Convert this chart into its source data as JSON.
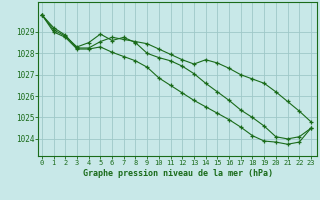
{
  "title": "Graphe pression niveau de la mer (hPa)",
  "bg_color": "#c8e8e8",
  "grid_color": "#9fc8c8",
  "line_color": "#1a6b1a",
  "marker_color": "#1a6b1a",
  "x_ticks": [
    0,
    1,
    2,
    3,
    4,
    5,
    6,
    7,
    8,
    9,
    10,
    11,
    12,
    13,
    14,
    15,
    16,
    17,
    18,
    19,
    20,
    21,
    22,
    23
  ],
  "y_ticks": [
    1024,
    1025,
    1026,
    1027,
    1028,
    1029
  ],
  "ylim": [
    1023.2,
    1030.4
  ],
  "xlim": [
    -0.3,
    23.5
  ],
  "series": [
    [
      1029.8,
      1029.2,
      1028.85,
      1028.25,
      1028.25,
      1028.55,
      1028.75,
      1028.65,
      1028.55,
      1028.45,
      1028.2,
      1027.95,
      1027.7,
      1027.5,
      1027.7,
      1027.55,
      1027.3,
      1027.0,
      1026.8,
      1026.6,
      1026.2,
      1025.75,
      1025.3,
      1024.8
    ],
    [
      1029.8,
      1029.1,
      1028.8,
      1028.3,
      1028.5,
      1028.9,
      1028.6,
      1028.75,
      1028.5,
      1028.0,
      1027.8,
      1027.65,
      1027.4,
      1027.05,
      1026.6,
      1026.2,
      1025.8,
      1025.35,
      1025.0,
      1024.6,
      1024.1,
      1024.0,
      1024.1,
      1024.5
    ],
    [
      1029.8,
      1029.0,
      1028.75,
      1028.2,
      1028.2,
      1028.3,
      1028.05,
      1027.85,
      1027.65,
      1027.35,
      1026.85,
      1026.5,
      1026.15,
      1025.8,
      1025.5,
      1025.2,
      1024.9,
      1024.55,
      1024.15,
      1023.9,
      1023.85,
      1023.75,
      1023.85,
      1024.5
    ]
  ]
}
